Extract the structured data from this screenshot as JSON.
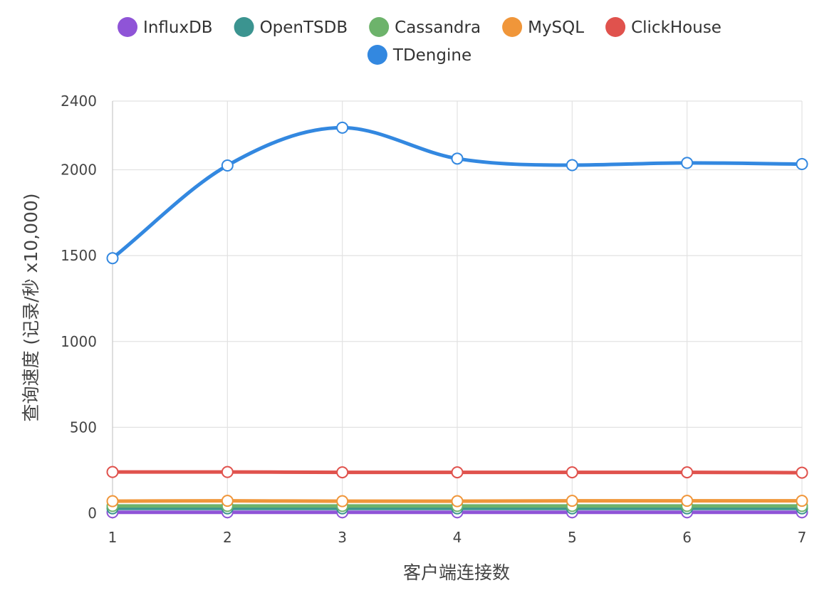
{
  "chart_data": {
    "type": "line",
    "categories": [
      "1",
      "2",
      "3",
      "4",
      "5",
      "6",
      "7"
    ],
    "series": [
      {
        "name": "InfluxDB",
        "color": "#8f54d7",
        "values": [
          5,
          5,
          5,
          5,
          5,
          5,
          5
        ]
      },
      {
        "name": "OpenTSDB",
        "color": "#3b9490",
        "values": [
          28,
          28,
          28,
          28,
          28,
          28,
          28
        ]
      },
      {
        "name": "Cassandra",
        "color": "#6db36b",
        "values": [
          42,
          42,
          42,
          42,
          42,
          42,
          42
        ]
      },
      {
        "name": "MySQL",
        "color": "#f0963a",
        "values": [
          70,
          72,
          70,
          70,
          72,
          72,
          72
        ]
      },
      {
        "name": "ClickHouse",
        "color": "#e0524d",
        "values": [
          240,
          240,
          238,
          238,
          238,
          238,
          236
        ]
      },
      {
        "name": "TDengine",
        "color": "#3388e0",
        "values": [
          1485,
          2025,
          2245,
          2065,
          2027,
          2040,
          2033
        ]
      }
    ],
    "xlabel": "客户端连接数",
    "ylabel": "查询速度 (记录/秒 x10,000)",
    "ylim": [
      0,
      2400
    ],
    "yticks": [
      0,
      500,
      1000,
      1500,
      2000,
      2400
    ],
    "grid": true,
    "legend": "top-center"
  }
}
